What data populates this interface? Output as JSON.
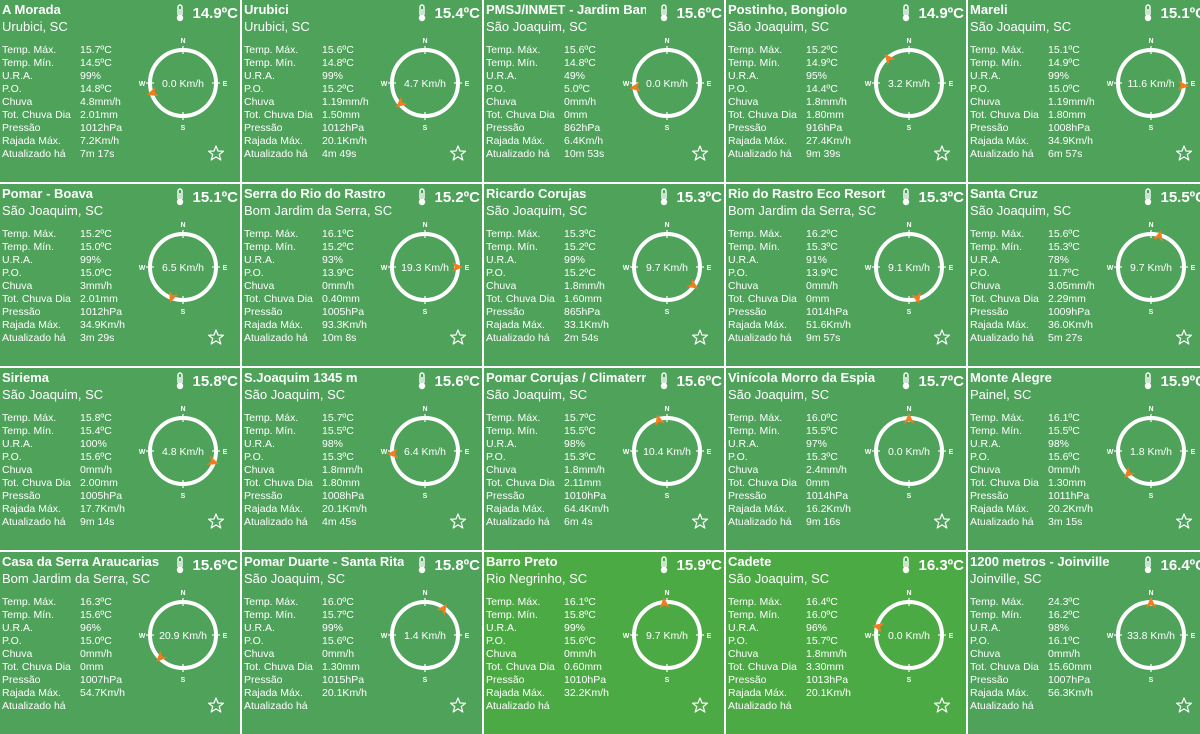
{
  "labels": {
    "tmax": "Temp. Máx.",
    "tmin": "Temp. Mín.",
    "ura": "U.R.A.",
    "po": "P.O.",
    "chuva": "Chuva",
    "tot": "Tot. Chuva Dia",
    "pressao": "Pressão",
    "rajada": "Rajada Máx.",
    "atualizado": "Atualizado há"
  },
  "compass_letters": {
    "n": "N",
    "s": "S",
    "e": "E",
    "w": "W"
  },
  "colors": {
    "card": "#4ea25a",
    "card_alt": "#4caa44",
    "arrow": "#f47c20",
    "ring": "#ffffff"
  },
  "icons": {
    "temperature": "thermometer-icon",
    "favorite": "star-icon"
  },
  "stations": [
    {
      "name": "A Morada",
      "location": "Urubici, SC",
      "temp": "14.9ºC",
      "tmax": "15.7ºC",
      "tmin": "14.5ºC",
      "ura": "99%",
      "po": "14.8ºC",
      "chuva": "4.8mm/h",
      "tot": "2.01mm",
      "pressao": "1012hPa",
      "rajada": "7.2Km/h",
      "atualizado": "7m 17s",
      "wind": "0.0 Km/h",
      "dir": 252
    },
    {
      "name": "Urubici",
      "location": "Urubici, SC",
      "temp": "15.4ºC",
      "tmax": "15.6ºC",
      "tmin": "14.8ºC",
      "ura": "99%",
      "po": "15.2ºC",
      "chuva": "1.19mm/h",
      "tot": "1.50mm",
      "pressao": "1012hPa",
      "rajada": "20.1Km/h",
      "atualizado": "4m 49s",
      "wind": "4.7 Km/h",
      "dir": 230
    },
    {
      "name": "PMSJ/INMET - Jardim Band",
      "location": "São Joaquim, SC",
      "temp": "15.6ºC",
      "tmax": "15.6ºC",
      "tmin": "14.8ºC",
      "ura": "49%",
      "po": "5.0ºC",
      "chuva": "0mm/h",
      "tot": "0mm",
      "pressao": "862hPa",
      "rajada": "6.4Km/h",
      "atualizado": "10m 53s",
      "wind": "0.0 Km/h",
      "dir": 262
    },
    {
      "name": "Postinho, Bongiolo",
      "location": "São Joaquim, SC",
      "temp": "14.9ºC",
      "tmax": "15.2ºC",
      "tmin": "14.9ºC",
      "ura": "95%",
      "po": "14.4ºC",
      "chuva": "1.8mm/h",
      "tot": "1.80mm",
      "pressao": "916hPa",
      "rajada": "27.4Km/h",
      "atualizado": "9m 39s",
      "wind": "3.2 Km/h",
      "dir": 320
    },
    {
      "name": "Mareli",
      "location": "São Joaquim, SC",
      "temp": "15.1ºC",
      "tmax": "15.1ºC",
      "tmin": "14.9ºC",
      "ura": "99%",
      "po": "15.0ºC",
      "chuva": "1.19mm/h",
      "tot": "1.80mm",
      "pressao": "1008hPa",
      "rajada": "34.9Km/h",
      "atualizado": "6m 57s",
      "wind": "11.6 Km/h",
      "dir": 95
    },
    {
      "name": "Pomar - Boava",
      "location": "São Joaquim, SC",
      "temp": "15.1ºC",
      "tmax": "15.2ºC",
      "tmin": "15.0ºC",
      "ura": "99%",
      "po": "15.0ºC",
      "chuva": "3mm/h",
      "tot": "2.01mm",
      "pressao": "1012hPa",
      "rajada": "34.9Km/h",
      "atualizado": "3m 29s",
      "wind": "6.5 Km/h",
      "dir": 200
    },
    {
      "name": "Serra do Rio do Rastro",
      "location": "Bom Jardim da Serra, SC",
      "temp": "15.2ºC",
      "tmax": "16.1ºC",
      "tmin": "15.2ºC",
      "ura": "93%",
      "po": "13.9ºC",
      "chuva": "0mm/h",
      "tot": "0.40mm",
      "pressao": "1005hPa",
      "rajada": "93.3Km/h",
      "atualizado": "10m 8s",
      "wind": "19.3 Km/h",
      "dir": 90
    },
    {
      "name": "Ricardo Corujas",
      "location": "São Joaquim, SC",
      "temp": "15.3ºC",
      "tmax": "15.3ºC",
      "tmin": "15.2ºC",
      "ura": "99%",
      "po": "15.2ºC",
      "chuva": "1.8mm/h",
      "tot": "1.60mm",
      "pressao": "865hPa",
      "rajada": "33.1Km/h",
      "atualizado": "2m 54s",
      "wind": "9.7 Km/h",
      "dir": 125
    },
    {
      "name": "Rio do Rastro Eco Resort",
      "location": "Bom Jardim da Serra, SC",
      "temp": "15.3ºC",
      "tmax": "16.2ºC",
      "tmin": "15.3ºC",
      "ura": "91%",
      "po": "13.9ºC",
      "chuva": "0mm/h",
      "tot": "0mm",
      "pressao": "1014hPa",
      "rajada": "51.6Km/h",
      "atualizado": "9m 57s",
      "wind": "9.1 Km/h",
      "dir": 165
    },
    {
      "name": "Santa Cruz",
      "location": "São Joaquim, SC",
      "temp": "15.5ºC",
      "tmax": "15.6ºC",
      "tmin": "15.3ºC",
      "ura": "78%",
      "po": "11.7ºC",
      "chuva": "3.05mm/h",
      "tot": "2.29mm",
      "pressao": "1009hPa",
      "rajada": "36.0Km/h",
      "atualizado": "5m 27s",
      "wind": "9.7 Km/h",
      "dir": 15
    },
    {
      "name": "Siriema",
      "location": "São Joaquim, SC",
      "temp": "15.8ºC",
      "tmax": "15.8ºC",
      "tmin": "15.4ºC",
      "ura": "100%",
      "po": "15.6ºC",
      "chuva": "0mm/h",
      "tot": "2.00mm",
      "pressao": "1005hPa",
      "rajada": "17.7Km/h",
      "atualizado": "9m 14s",
      "wind": "4.8 Km/h",
      "dir": 110
    },
    {
      "name": "S.Joaquim 1345 m",
      "location": "São Joaquim, SC",
      "temp": "15.6ºC",
      "tmax": "15.7ºC",
      "tmin": "15.5ºC",
      "ura": "98%",
      "po": "15.3ºC",
      "chuva": "1.8mm/h",
      "tot": "1.80mm",
      "pressao": "1008hPa",
      "rajada": "20.1Km/h",
      "atualizado": "4m 45s",
      "wind": "6.4 Km/h",
      "dir": 265
    },
    {
      "name": "Pomar Corujas / Climaterr",
      "location": "São Joaquim, SC",
      "temp": "15.6ºC",
      "tmax": "15.7ºC",
      "tmin": "15.5ºC",
      "ura": "98%",
      "po": "15.3ºC",
      "chuva": "1.8mm/h",
      "tot": "2.11mm",
      "pressao": "1010hPa",
      "rajada": "64.4Km/h",
      "atualizado": "6m 4s",
      "wind": "10.4 Km/h",
      "dir": 345
    },
    {
      "name": "Vinícola Morro da Espia",
      "location": "São Joaquim, SC",
      "temp": "15.7ºC",
      "tmax": "16.0ºC",
      "tmin": "15.5ºC",
      "ura": "97%",
      "po": "15.3ºC",
      "chuva": "2.4mm/h",
      "tot": "0mm",
      "pressao": "1014hPa",
      "rajada": "16.2Km/h",
      "atualizado": "9m 16s",
      "wind": "0.0 Km/h",
      "dir": 0
    },
    {
      "name": "Monte Alegre",
      "location": "Painel, SC",
      "temp": "15.9ºC",
      "tmax": "16.1ºC",
      "tmin": "15.5ºC",
      "ura": "98%",
      "po": "15.6ºC",
      "chuva": "0mm/h",
      "tot": "1.30mm",
      "pressao": "1011hPa",
      "rajada": "20.2Km/h",
      "atualizado": "3m 15s",
      "wind": "1.8 Km/h",
      "dir": 225
    },
    {
      "name": "Casa da Serra Araucarias",
      "location": "Bom Jardim da Serra, SC",
      "temp": "15.6ºC",
      "tmax": "16.3ºC",
      "tmin": "15.6ºC",
      "ura": "96%",
      "po": "15.0ºC",
      "chuva": "0mm/h",
      "tot": "0mm",
      "pressao": "1007hPa",
      "rajada": "54.7Km/h",
      "atualizado": "",
      "wind": "20.9 Km/h",
      "dir": 225
    },
    {
      "name": "Pomar Duarte - Santa Rita",
      "location": "São Joaquim, SC",
      "temp": "15.8ºC",
      "tmax": "16.0ºC",
      "tmin": "15.7ºC",
      "ura": "99%",
      "po": "15.6ºC",
      "chuva": "0mm/h",
      "tot": "1.30mm",
      "pressao": "1015hPa",
      "rajada": "20.1Km/h",
      "atualizado": "",
      "wind": "1.4 Km/h",
      "dir": 35
    },
    {
      "name": "Barro Preto",
      "location": "Rio Negrinho, SC",
      "temp": "15.9ºC",
      "tmax": "16.1ºC",
      "tmin": "15.8ºC",
      "ura": "99%",
      "po": "15.6ºC",
      "chuva": "0mm/h",
      "tot": "0.60mm",
      "pressao": "1010hPa",
      "rajada": "32.2Km/h",
      "atualizado": "",
      "wind": "9.7 Km/h",
      "dir": 355,
      "alt": true
    },
    {
      "name": "Cadete",
      "location": "São Joaquim, SC",
      "temp": "16.3ºC",
      "tmax": "16.4ºC",
      "tmin": "16.0ºC",
      "ura": "96%",
      "po": "15.7ºC",
      "chuva": "1.8mm/h",
      "tot": "3.30mm",
      "pressao": "1013hPa",
      "rajada": "20.1Km/h",
      "atualizado": "",
      "wind": "0.0 Km/h",
      "dir": 285,
      "alt": true
    },
    {
      "name": "1200 metros - Joinville",
      "location": "Joinville, SC",
      "temp": "16.4ºC",
      "tmax": "24.3ºC",
      "tmin": "16.2ºC",
      "ura": "98%",
      "po": "16.1ºC",
      "chuva": "0mm/h",
      "tot": "15.60mm",
      "pressao": "1007hPa",
      "rajada": "56.3Km/h",
      "atualizado": "",
      "wind": "33.8 Km/h",
      "dir": 0
    }
  ]
}
